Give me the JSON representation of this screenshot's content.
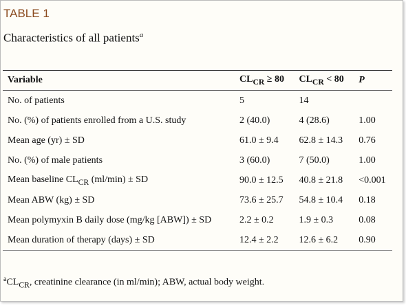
{
  "header": {
    "label": "TABLE 1",
    "caption": [
      "Characteristics of all patients",
      {
        "sup": "a"
      }
    ]
  },
  "table": {
    "columns": [
      "Variable",
      [
        "CL",
        {
          "sub": "CR"
        },
        " ≥ 80"
      ],
      [
        "CL",
        {
          "sub": "CR"
        },
        " < 80"
      ],
      "P"
    ],
    "rows": [
      [
        "No. of patients",
        "5",
        "14",
        ""
      ],
      [
        "No. (%) of patients enrolled from a U.S. study",
        "2 (40.0)",
        "4 (28.6)",
        "1.00"
      ],
      [
        "Mean age (yr) ± SD",
        "61.0 ± 9.4",
        "62.8 ± 14.3",
        "0.76"
      ],
      [
        "No. (%) of male patients",
        "3 (60.0)",
        "7 (50.0)",
        "1.00"
      ],
      [
        [
          "Mean baseline CL",
          {
            "sub": "CR"
          },
          " (ml/min) ± SD"
        ],
        "90.0 ± 12.5",
        "40.8 ± 21.8",
        "<0.001"
      ],
      [
        "Mean ABW (kg) ± SD",
        "73.6 ± 25.7",
        "54.8 ± 10.4",
        "0.18"
      ],
      [
        "Mean polymyxin B daily dose (mg/kg [ABW]) ± SD",
        "2.2 ± 0.2",
        "1.9 ± 0.3",
        "0.08"
      ],
      [
        "Mean duration of therapy (days) ± SD",
        "12.4 ± 2.2",
        "12.6 ± 6.2",
        "0.90"
      ]
    ]
  },
  "footnote": [
    {
      "sup": "a"
    },
    "CL",
    {
      "sub": "CR"
    },
    ", creatinine clearance (in ml/min); ABW, actual body weight."
  ]
}
